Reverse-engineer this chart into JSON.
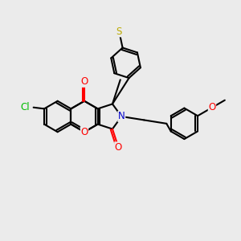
{
  "bg_color": "#ebebeb",
  "bond_color": "#000000",
  "bond_lw": 1.5,
  "atom_colors": {
    "O": "#ff0000",
    "N": "#0000cc",
    "Cl": "#00bb00",
    "S": "#bbaa00",
    "C": "#000000"
  },
  "font_size": 8.5,
  "fig_size": [
    3.0,
    3.0
  ],
  "dpi": 100
}
